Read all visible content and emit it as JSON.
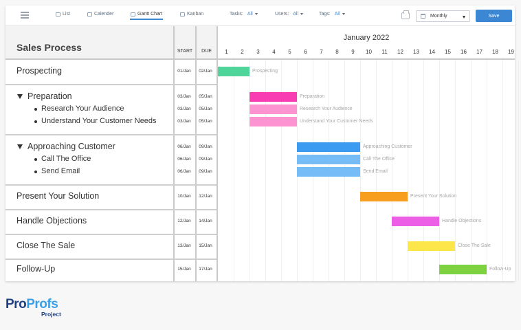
{
  "toolbar": {
    "views": [
      {
        "label": "List",
        "icon": "list-icon"
      },
      {
        "label": "Calender",
        "icon": "calendar-icon"
      },
      {
        "label": "Gantt Chart",
        "icon": "gantt-icon"
      },
      {
        "label": "Kanban",
        "icon": "kanban-icon"
      }
    ],
    "active_view": "Gantt Chart",
    "filters": [
      {
        "label": "Tasks:",
        "value": "All"
      },
      {
        "label": "Users:",
        "value": "All"
      },
      {
        "label": "Tags:",
        "value": "All"
      }
    ],
    "range": "Monthly",
    "save_label": "Save"
  },
  "table": {
    "title": "Sales Process",
    "start_header": "START",
    "due_header": "DUE"
  },
  "chart": {
    "month": "January 2022",
    "days": [
      "1",
      "2",
      "3",
      "4",
      "5",
      "6",
      "7",
      "8",
      "9",
      "10",
      "11",
      "12",
      "13",
      "14",
      "15",
      "16",
      "17",
      "18",
      "19"
    ]
  },
  "tasks": [
    {
      "name": "Prospecting",
      "start": "01/Jan",
      "due": "02/Jan",
      "color": "#4fd49a"
    },
    {
      "name": "Preparation",
      "start": "03/Jan",
      "due": "05/Jan",
      "color": "#f83db2"
    },
    {
      "name": "Research Your Audience",
      "start": "03/Jan",
      "due": "05/Jan",
      "color": "#fd93d1"
    },
    {
      "name": "Understand Your Customer Needs",
      "start": "03/Jan",
      "due": "05/Jan",
      "color": "#fd93d1"
    },
    {
      "name": "Approaching Customer",
      "start": "06/Jan",
      "due": "09/Jan",
      "color": "#3a9bf0"
    },
    {
      "name": "Call The Office",
      "start": "06/Jan",
      "due": "09/Jan",
      "color": "#76bdf8"
    },
    {
      "name": "Send Email",
      "start": "06/Jan",
      "due": "09/Jan",
      "color": "#76bdf8"
    },
    {
      "name": "Present Your Solution",
      "start": "10/Jan",
      "due": "12/Jan",
      "color": "#f89e1e"
    },
    {
      "name": "Handle Objections",
      "start": "12/Jan",
      "due": "14/Jan",
      "color": "#ec5ee6"
    },
    {
      "name": "Close The Sale",
      "start": "13/Jan",
      "due": "15/Jan",
      "color": "#fde64a"
    },
    {
      "name": "Follow-Up",
      "start": "15/Jan",
      "due": "17/Jan",
      "color": "#7cd23f"
    }
  ],
  "branding": {
    "logo_pro": "Pro",
    "logo_profs": "Profs",
    "logo_sub": "Project"
  }
}
